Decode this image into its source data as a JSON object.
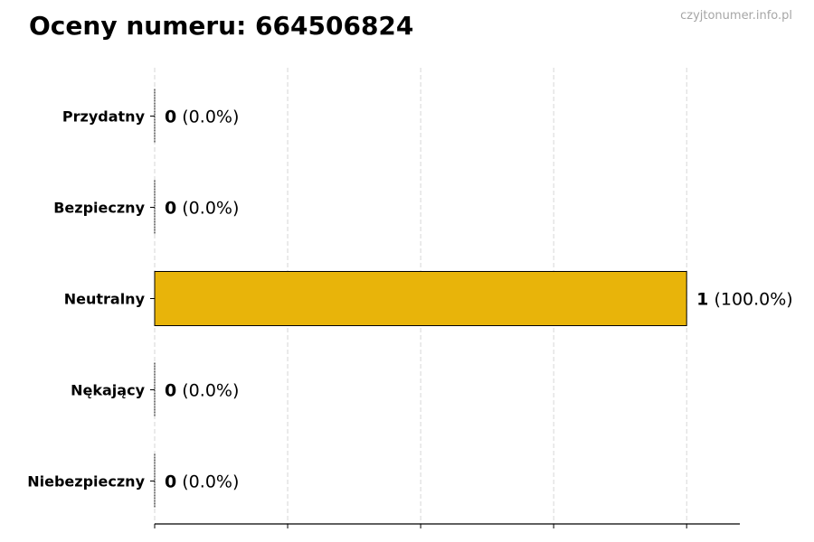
{
  "title": "Oceny numeru: 664506824",
  "watermark": "czyjtonumer.info.pl",
  "chart_data": {
    "type": "bar",
    "orientation": "horizontal",
    "title": "Oceny numeru: 664506824",
    "categories": [
      "Przydatny",
      "Bezpieczny",
      "Neutralny",
      "Nękający",
      "Niebezpieczny"
    ],
    "values": [
      0,
      0,
      1,
      0,
      0
    ],
    "percent_labels": [
      "(0.0%)",
      "(0.0%)",
      "(100.0%)",
      "(0.0%)",
      "(0.0%)"
    ],
    "xlim": [
      0,
      1.1
    ],
    "xticks": [
      0,
      0.25,
      0.5,
      0.75,
      1
    ],
    "xtick_labels_shown": false,
    "grid": "x-dashed",
    "bar_color": "#E8B40A",
    "edge_color": "#000000",
    "xlabel": "",
    "ylabel": ""
  }
}
